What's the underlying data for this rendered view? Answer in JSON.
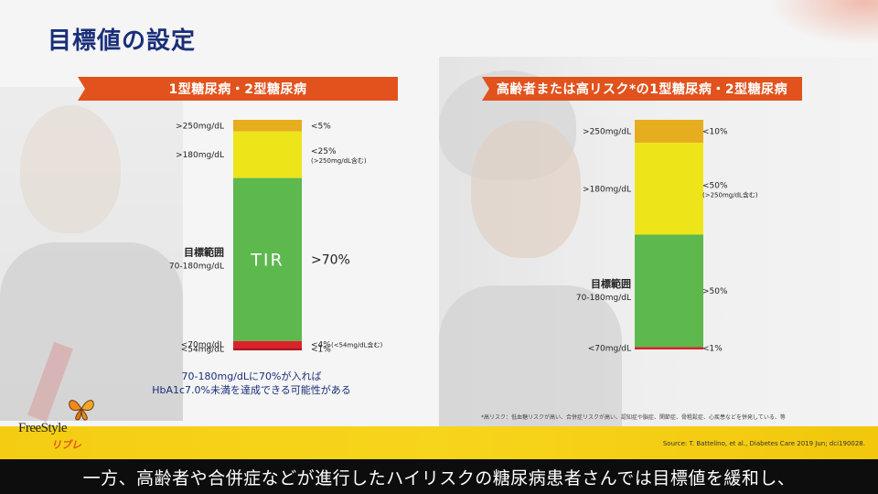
{
  "slide": {
    "title": "目標値の設定",
    "note_line1": "70-180mg/dLに70%が入れば",
    "note_line2": "HbA1c7.0%未満を達成できる可能性がある",
    "footnote": "*高リスク：低血糖リスクが高い、合併症リスクが高い、認知症や脳症、関節症、骨粗鬆症、心疾患などを併発している、等",
    "source": "Source: T. Battelino, et al., Diabetes Care  2019 Jun;  dci190028.",
    "logo_main": "FreeStyle",
    "logo_sub": "リブレ",
    "subtitle": "一方、高齢者や合併症などが進行したハイリスクの糖尿病患者さんでは目標値を緩和し、"
  },
  "colors": {
    "title": "#1a2f7a",
    "banner": "#e1521d",
    "very_high": "#e6ad1f",
    "high": "#eee41a",
    "in_range": "#5db84e",
    "low": "#d9232a",
    "very_low": "#b5141d"
  },
  "chart_data": [
    {
      "type": "bar",
      "title": "1型糖尿病・2型糖尿病",
      "stacked": true,
      "series": [
        {
          "range_label": ">250mg/dL",
          "target": "<5%",
          "value": 5
        },
        {
          "range_label": ">180mg/dL",
          "target": "<25%",
          "sub_note": "(>250mg/dL含む)",
          "value": 20
        },
        {
          "range_label": "目標範囲",
          "range_label_2": "70-180mg/dL",
          "bar_label": "TIR",
          "target": ">70%",
          "value": 70
        },
        {
          "range_label": "<70mg/dL",
          "target": "<4%",
          "sub_note": "(<54mg/dL含む)",
          "value": 3
        },
        {
          "range_label": "<54mg/dL",
          "target": "<1%",
          "value": 1
        }
      ]
    },
    {
      "type": "bar",
      "title": "高齢者または高リスク*の1型糖尿病・2型糖尿病",
      "stacked": true,
      "series": [
        {
          "range_label": ">250mg/dL",
          "target": "<10%",
          "value": 10
        },
        {
          "range_label": ">180mg/dL",
          "target": "<50%",
          "sub_note": "(>250mg/dL含む)",
          "value": 40
        },
        {
          "range_label": "目標範囲",
          "range_label_2": "70-180mg/dL",
          "target": ">50%",
          "value": 49
        },
        {
          "range_label": "<70mg/dL",
          "target": "<1%",
          "value": 1
        }
      ]
    }
  ]
}
